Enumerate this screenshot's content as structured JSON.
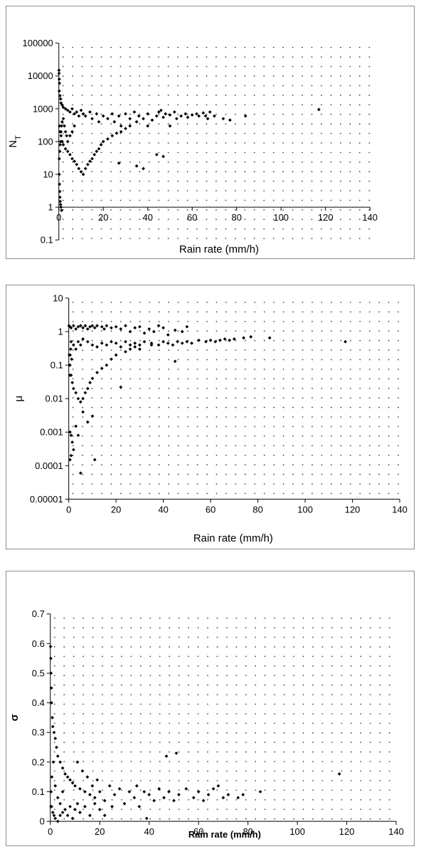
{
  "chart_data": [
    {
      "type": "scatter",
      "xlabel": "Rain rate (mm/h)",
      "ylabel": "N_T",
      "yscale": "log",
      "xlim": [
        0,
        140
      ],
      "ylim": [
        0.1,
        100000
      ],
      "x_ticks": [
        "0",
        "20",
        "40",
        "60",
        "80",
        "100",
        "120",
        "140"
      ],
      "y_ticks": [
        "0.1",
        "1",
        "10",
        "100",
        "1000",
        "10000",
        "100000"
      ],
      "x_axis_crosses_y_at": 1,
      "grid": "dotted",
      "marker_color": "#000000",
      "points": [
        [
          0.05,
          15000
        ],
        [
          0.1,
          12000
        ],
        [
          0.2,
          8000
        ],
        [
          0.3,
          6000
        ],
        [
          0.2,
          3500
        ],
        [
          0.5,
          2500
        ],
        [
          0.8,
          2000
        ],
        [
          1,
          1500
        ],
        [
          1.5,
          1300
        ],
        [
          2,
          1100
        ],
        [
          3,
          1000
        ],
        [
          4,
          900
        ],
        [
          5,
          800
        ],
        [
          6,
          1000
        ],
        [
          7,
          700
        ],
        [
          8,
          800
        ],
        [
          9,
          600
        ],
        [
          10,
          900
        ],
        [
          11,
          700
        ],
        [
          12,
          600
        ],
        [
          14,
          800
        ],
        [
          15,
          500
        ],
        [
          17,
          700
        ],
        [
          18,
          400
        ],
        [
          20,
          600
        ],
        [
          22,
          500
        ],
        [
          24,
          700
        ],
        [
          25,
          400
        ],
        [
          27,
          600
        ],
        [
          28,
          300
        ],
        [
          30,
          700
        ],
        [
          32,
          500
        ],
        [
          34,
          800
        ],
        [
          35,
          400
        ],
        [
          36,
          600
        ],
        [
          38,
          500
        ],
        [
          40,
          700
        ],
        [
          42,
          450
        ],
        [
          44,
          600
        ],
        [
          45,
          800
        ],
        [
          46,
          900
        ],
        [
          47,
          550
        ],
        [
          48,
          700
        ],
        [
          50,
          650
        ],
        [
          52,
          800
        ],
        [
          53,
          500
        ],
        [
          55,
          600
        ],
        [
          57,
          700
        ],
        [
          58,
          550
        ],
        [
          60,
          650
        ],
        [
          62,
          700
        ],
        [
          63,
          600
        ],
        [
          65,
          750
        ],
        [
          66,
          600
        ],
        [
          67,
          500
        ],
        [
          68,
          800
        ],
        [
          70,
          600
        ],
        [
          74,
          500
        ],
        [
          77,
          450
        ],
        [
          84,
          600
        ],
        [
          117,
          950
        ],
        [
          0.3,
          300
        ],
        [
          0.5,
          200
        ],
        [
          1,
          150
        ],
        [
          1.5,
          100
        ],
        [
          2,
          80
        ],
        [
          3,
          60
        ],
        [
          4,
          50
        ],
        [
          5,
          40
        ],
        [
          6,
          30
        ],
        [
          7,
          25
        ],
        [
          8,
          20
        ],
        [
          9,
          15
        ],
        [
          10,
          12
        ],
        [
          11,
          10
        ],
        [
          12,
          15
        ],
        [
          13,
          20
        ],
        [
          14,
          25
        ],
        [
          15,
          30
        ],
        [
          16,
          40
        ],
        [
          17,
          50
        ],
        [
          18,
          60
        ],
        [
          19,
          80
        ],
        [
          20,
          100
        ],
        [
          22,
          120
        ],
        [
          24,
          150
        ],
        [
          26,
          180
        ],
        [
          27,
          22
        ],
        [
          28,
          200
        ],
        [
          30,
          250
        ],
        [
          32,
          300
        ],
        [
          35,
          18
        ],
        [
          38,
          15
        ],
        [
          40,
          300
        ],
        [
          44,
          40
        ],
        [
          47,
          35
        ],
        [
          50,
          300
        ],
        [
          0.2,
          10
        ],
        [
          0.3,
          5
        ],
        [
          0.4,
          3
        ],
        [
          0.5,
          2
        ],
        [
          0.6,
          1.5
        ],
        [
          0.8,
          1.2
        ],
        [
          1,
          1
        ],
        [
          1.2,
          0.8
        ],
        [
          0.2,
          30
        ],
        [
          0.4,
          50
        ],
        [
          0.6,
          80
        ],
        [
          0.8,
          100
        ],
        [
          1,
          200
        ],
        [
          1.2,
          300
        ],
        [
          1.5,
          400
        ],
        [
          2,
          500
        ],
        [
          2.5,
          300
        ],
        [
          3,
          200
        ],
        [
          3.5,
          150
        ],
        [
          4,
          100
        ],
        [
          5,
          150
        ],
        [
          6,
          200
        ],
        [
          7,
          300
        ]
      ]
    },
    {
      "type": "scatter",
      "xlabel": "Rain rate (mm/h)",
      "ylabel": "μ",
      "yscale": "log",
      "xlim": [
        0,
        140
      ],
      "ylim": [
        1e-05,
        10
      ],
      "x_ticks": [
        "0",
        "20",
        "40",
        "60",
        "80",
        "100",
        "120",
        "140"
      ],
      "y_ticks": [
        "0.00001",
        "0.0001",
        "0.001",
        "0.01",
        "0.1",
        "1",
        "10"
      ],
      "grid": "dotted",
      "marker_color": "#000000",
      "points": [
        [
          0.1,
          1.5
        ],
        [
          0.5,
          1.4
        ],
        [
          1,
          1.3
        ],
        [
          2,
          1.5
        ],
        [
          3,
          1.2
        ],
        [
          4,
          1.4
        ],
        [
          5,
          1.5
        ],
        [
          6,
          1.3
        ],
        [
          7,
          1.5
        ],
        [
          8,
          1.2
        ],
        [
          9,
          1.4
        ],
        [
          10,
          1.5
        ],
        [
          11,
          1.3
        ],
        [
          12,
          1.5
        ],
        [
          14,
          1.4
        ],
        [
          15,
          1.2
        ],
        [
          16,
          1.5
        ],
        [
          18,
          1.3
        ],
        [
          20,
          1.4
        ],
        [
          22,
          1.2
        ],
        [
          24,
          1.5
        ],
        [
          26,
          1.0
        ],
        [
          28,
          1.3
        ],
        [
          30,
          1.4
        ],
        [
          32,
          0.9
        ],
        [
          34,
          1.2
        ],
        [
          36,
          1.0
        ],
        [
          38,
          1.5
        ],
        [
          40,
          1.3
        ],
        [
          42,
          0.8
        ],
        [
          45,
          1.1
        ],
        [
          48,
          1.0
        ],
        [
          50,
          1.4
        ],
        [
          1,
          0.5
        ],
        [
          2,
          0.4
        ],
        [
          3,
          0.3
        ],
        [
          4,
          0.5
        ],
        [
          5,
          0.4
        ],
        [
          6,
          0.6
        ],
        [
          8,
          0.5
        ],
        [
          10,
          0.4
        ],
        [
          12,
          0.35
        ],
        [
          14,
          0.45
        ],
        [
          16,
          0.4
        ],
        [
          18,
          0.5
        ],
        [
          20,
          0.45
        ],
        [
          22,
          0.35
        ],
        [
          24,
          0.5
        ],
        [
          26,
          0.4
        ],
        [
          28,
          0.45
        ],
        [
          30,
          0.4
        ],
        [
          32,
          0.5
        ],
        [
          35,
          0.45
        ],
        [
          38,
          0.4
        ],
        [
          40,
          0.5
        ],
        [
          42,
          0.45
        ],
        [
          44,
          0.4
        ],
        [
          46,
          0.5
        ],
        [
          48,
          0.45
        ],
        [
          50,
          0.5
        ],
        [
          52,
          0.45
        ],
        [
          55,
          0.55
        ],
        [
          58,
          0.5
        ],
        [
          60,
          0.55
        ],
        [
          62,
          0.5
        ],
        [
          64,
          0.55
        ],
        [
          66,
          0.6
        ],
        [
          68,
          0.55
        ],
        [
          70,
          0.6
        ],
        [
          74,
          0.65
        ],
        [
          77,
          0.7
        ],
        [
          85,
          0.65
        ],
        [
          117,
          0.5
        ],
        [
          0.5,
          0.1
        ],
        [
          1,
          0.05
        ],
        [
          1.5,
          0.03
        ],
        [
          2,
          0.02
        ],
        [
          3,
          0.015
        ],
        [
          4,
          0.01
        ],
        [
          5,
          0.008
        ],
        [
          6,
          0.01
        ],
        [
          7,
          0.015
        ],
        [
          8,
          0.02
        ],
        [
          9,
          0.03
        ],
        [
          10,
          0.04
        ],
        [
          12,
          0.06
        ],
        [
          14,
          0.08
        ],
        [
          16,
          0.1
        ],
        [
          18,
          0.15
        ],
        [
          20,
          0.2
        ],
        [
          22,
          0.022
        ],
        [
          24,
          0.25
        ],
        [
          26,
          0.3
        ],
        [
          28,
          0.35
        ],
        [
          30,
          0.3
        ],
        [
          35,
          0.4
        ],
        [
          45,
          0.13
        ],
        [
          0.5,
          0.001
        ],
        [
          1,
          0.0008
        ],
        [
          1.5,
          0.0005
        ],
        [
          2,
          0.0003
        ],
        [
          0.5,
          0.00015
        ],
        [
          1,
          0.0002
        ],
        [
          3,
          0.0015
        ],
        [
          4,
          0.0008
        ],
        [
          5,
          6e-05
        ],
        [
          6,
          0.004
        ],
        [
          8,
          0.002
        ],
        [
          10,
          0.003
        ],
        [
          11,
          0.00015
        ],
        [
          0.2,
          0.2
        ],
        [
          0.3,
          0.1
        ],
        [
          0.4,
          0.05
        ],
        [
          0.6,
          0.2
        ],
        [
          0.8,
          0.3
        ],
        [
          1.2,
          0.15
        ]
      ]
    },
    {
      "type": "scatter",
      "xlabel": "Rain rate (mm/h)",
      "ylabel": "σ",
      "xlim": [
        0,
        140
      ],
      "ylim": [
        0,
        0.7
      ],
      "x_ticks": [
        "0",
        "20",
        "40",
        "60",
        "80",
        "100",
        "120",
        "140"
      ],
      "y_ticks": [
        "0",
        "0.1",
        "0.2",
        "0.3",
        "0.4",
        "0.5",
        "0.6",
        "0.7"
      ],
      "grid": "dotted",
      "marker_color": "#000000",
      "points": [
        [
          0.1,
          0.59
        ],
        [
          0.2,
          0.55
        ],
        [
          0.3,
          0.5
        ],
        [
          0.4,
          0.45
        ],
        [
          0.5,
          0.4
        ],
        [
          0.8,
          0.35
        ],
        [
          1,
          0.32
        ],
        [
          1.5,
          0.3
        ],
        [
          2,
          0.28
        ],
        [
          2.5,
          0.25
        ],
        [
          3,
          0.22
        ],
        [
          4,
          0.2
        ],
        [
          5,
          0.18
        ],
        [
          6,
          0.16
        ],
        [
          7,
          0.15
        ],
        [
          8,
          0.14
        ],
        [
          9,
          0.13
        ],
        [
          10,
          0.12
        ],
        [
          11,
          0.2
        ],
        [
          12,
          0.11
        ],
        [
          13,
          0.17
        ],
        [
          14,
          0.1
        ],
        [
          15,
          0.15
        ],
        [
          16,
          0.09
        ],
        [
          17,
          0.12
        ],
        [
          18,
          0.08
        ],
        [
          19,
          0.14
        ],
        [
          20,
          0.1
        ],
        [
          22,
          0.07
        ],
        [
          24,
          0.12
        ],
        [
          25,
          0.05
        ],
        [
          26,
          0.09
        ],
        [
          28,
          0.11
        ],
        [
          30,
          0.06
        ],
        [
          32,
          0.1
        ],
        [
          34,
          0.08
        ],
        [
          35,
          0.12
        ],
        [
          36,
          0.05
        ],
        [
          38,
          0.1
        ],
        [
          39,
          0.01
        ],
        [
          40,
          0.09
        ],
        [
          42,
          0.07
        ],
        [
          44,
          0.11
        ],
        [
          46,
          0.08
        ],
        [
          47,
          0.22
        ],
        [
          48,
          0.1
        ],
        [
          50,
          0.07
        ],
        [
          51,
          0.23
        ],
        [
          52,
          0.09
        ],
        [
          55,
          0.11
        ],
        [
          58,
          0.08
        ],
        [
          60,
          0.1
        ],
        [
          62,
          0.07
        ],
        [
          64,
          0.09
        ],
        [
          66,
          0.11
        ],
        [
          68,
          0.12
        ],
        [
          70,
          0.08
        ],
        [
          72,
          0.09
        ],
        [
          76,
          0.08
        ],
        [
          78,
          0.09
        ],
        [
          85,
          0.1
        ],
        [
          117,
          0.16
        ],
        [
          0.5,
          0.05
        ],
        [
          1,
          0.03
        ],
        [
          1.5,
          0.02
        ],
        [
          2,
          0.01
        ],
        [
          3,
          0.0
        ],
        [
          4,
          0.02
        ],
        [
          5,
          0.03
        ],
        [
          6,
          0.04
        ],
        [
          7,
          0.02
        ],
        [
          8,
          0.05
        ],
        [
          9,
          0.01
        ],
        [
          10,
          0.04
        ],
        [
          11,
          0.06
        ],
        [
          12,
          0.03
        ],
        [
          14,
          0.05
        ],
        [
          16,
          0.02
        ],
        [
          18,
          0.06
        ],
        [
          20,
          0.04
        ],
        [
          22,
          0.02
        ],
        [
          0.2,
          0.05
        ],
        [
          0.3,
          0.1
        ],
        [
          0.6,
          0.15
        ],
        [
          1.2,
          0.2
        ],
        [
          2,
          0.12
        ],
        [
          3,
          0.08
        ],
        [
          4,
          0.06
        ],
        [
          5,
          0.1
        ]
      ]
    }
  ]
}
